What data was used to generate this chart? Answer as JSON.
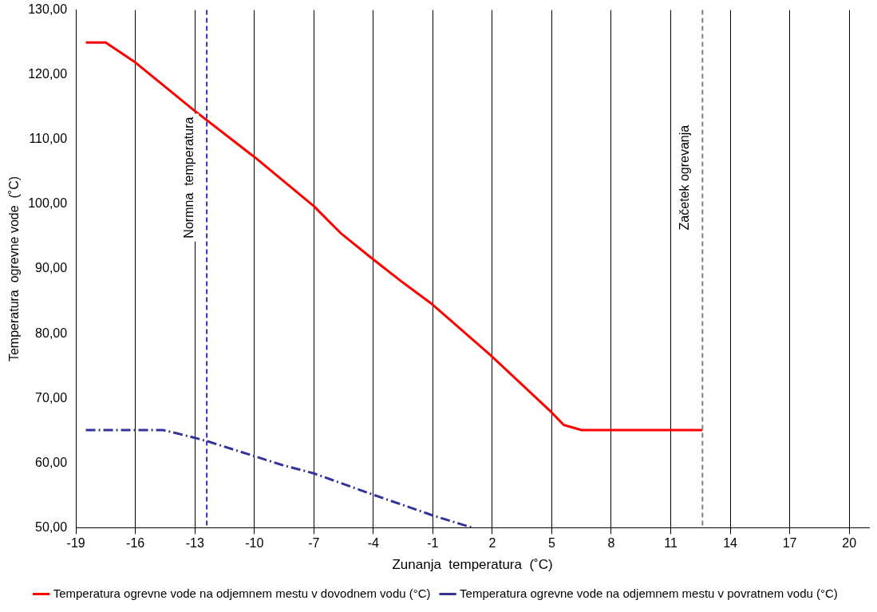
{
  "chart_data": {
    "type": "line",
    "xlabel": "Zunanja  temperatura  (˚C)",
    "ylabel": "Temperatura  ogrevne vode  (˚C)",
    "xlim": [
      -19,
      21
    ],
    "xticks": [
      -19,
      -16,
      -13,
      -10,
      -7,
      -4,
      -1,
      2,
      5,
      8,
      11,
      14,
      17,
      20
    ],
    "ylim": [
      50,
      130
    ],
    "yticks": [
      {
        "value": 50,
        "label": "50,00"
      },
      {
        "value": 60,
        "label": "60,00"
      },
      {
        "value": 70,
        "label": "70,00"
      },
      {
        "value": 80,
        "label": "80,00"
      },
      {
        "value": 90,
        "label": "90,00"
      },
      {
        "value": 100,
        "label": "100,00"
      },
      {
        "value": 110,
        "label": "110,00"
      },
      {
        "value": 120,
        "label": "120,00"
      },
      {
        "value": 130,
        "label": "130,00"
      }
    ],
    "grid": "x",
    "legend": "bottom",
    "marker": "none",
    "series": [
      {
        "name": "Temperatura ogrevne vode na odjemnem mestu v dovodnem vodu (°C)",
        "color": "#ff0000",
        "line_style": "solid",
        "x": [
          -18.5,
          -17.5,
          -16,
          -13,
          -10,
          -7,
          -5.6,
          -4.1,
          -2.6,
          -1.1,
          1.9,
          4.9,
          5.6,
          6.5,
          12.6
        ],
        "values": [
          125,
          125,
          121.9,
          114.4,
          107.3,
          99.7,
          95.4,
          91.7,
          88.1,
          84.7,
          76.7,
          68.1,
          65.9,
          65.1,
          65.1
        ]
      },
      {
        "name": "Temperatura ogrevne vode na odjemnem mestu v povratnem vodu (°C)",
        "color": "#333399",
        "line_style": "dashdot",
        "x": [
          -18.5,
          -14.6,
          -13,
          -12.3,
          -8.6,
          -7,
          -4,
          -1,
          1
        ],
        "values": [
          65.1,
          65.1,
          63.9,
          63.3,
          59.7,
          58.4,
          55.1,
          51.9,
          50
        ]
      }
    ],
    "ref_lines": [
      {
        "axis": "x",
        "value": -12.4,
        "label": "Normna  temperatura",
        "color": "#3333aa",
        "line_style": "dashed"
      },
      {
        "axis": "x",
        "value": 12.6,
        "label": "Začetek ogrevanja",
        "color": "#808080",
        "line_style": "dashed"
      }
    ]
  }
}
